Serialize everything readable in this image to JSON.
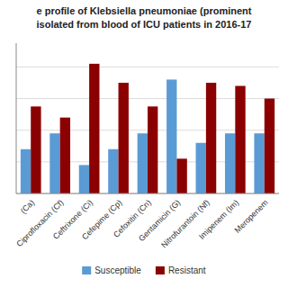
{
  "chart_data": {
    "type": "bar",
    "title": "e profile of Klebsiella pneumoniae (prominent",
    "subtitle": "isolated from blood of ICU patients in 2016-17",
    "categories": [
      "(Ca)",
      "Ciprofloxacin (Cf)",
      "Ceftrixone (Ci)",
      "Cefepime (Cp)",
      "Cefoxitin (Cn)",
      "Gentamicin (G)",
      "Nitrofurantoin (Nf)",
      "Imipenem (Im)",
      "Meropenem"
    ],
    "series": [
      {
        "name": "Susceptible",
        "color": "#5b9bd5",
        "values": [
          28,
          38,
          18,
          28,
          38,
          72,
          32,
          38,
          38
        ]
      },
      {
        "name": "Resistant",
        "color": "#8b0000",
        "values": [
          55,
          48,
          82,
          70,
          55,
          22,
          70,
          68,
          60
        ]
      }
    ],
    "ylim": [
      0,
      95
    ],
    "yticks": [
      0,
      20,
      40,
      60,
      80
    ],
    "grid": true,
    "legend": "bottom",
    "tick_labels": "x"
  }
}
